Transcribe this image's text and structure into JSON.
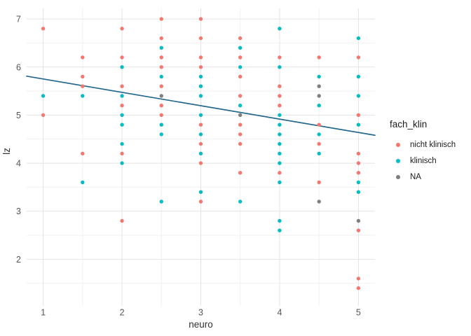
{
  "chart_data": {
    "type": "scatter",
    "title": "",
    "xlabel": "neuro",
    "ylabel": "lz",
    "x_ticks": [
      1,
      2,
      3,
      4,
      5
    ],
    "y_ticks": [
      2,
      3,
      4,
      5,
      6,
      7
    ],
    "xlim": [
      0.79,
      5.21
    ],
    "ylim": [
      1.03,
      7.22
    ],
    "grid": {
      "major_x": [
        1,
        2,
        3,
        4,
        5
      ],
      "minor_x": [
        1.5,
        2.5,
        3.5,
        4.5
      ],
      "major_y": [
        2,
        3,
        4,
        5,
        6,
        7
      ],
      "minor_y": [
        1.5,
        2.5,
        3.5,
        4.5,
        5.5,
        6.5
      ],
      "major_color": "#e4e4e4",
      "minor_color": "#f1f1f1"
    },
    "legend": {
      "title": "fach_klin",
      "position": "right"
    },
    "series": [
      {
        "name": "nicht klinisch",
        "color": "#F8766D",
        "points": [
          [
            1,
            6.8
          ],
          [
            1,
            5.0
          ],
          [
            1.5,
            6.2
          ],
          [
            1.5,
            5.8
          ],
          [
            1.5,
            5.6
          ],
          [
            1.5,
            4.2
          ],
          [
            2,
            6.8
          ],
          [
            2,
            6.2
          ],
          [
            2,
            5.6
          ],
          [
            2,
            5.2
          ],
          [
            2,
            4.2
          ],
          [
            2,
            2.8
          ],
          [
            2.5,
            7.0
          ],
          [
            2.5,
            6.6
          ],
          [
            2.5,
            6.2
          ],
          [
            2.5,
            6.0
          ],
          [
            2.5,
            5.6
          ],
          [
            2.5,
            5.2
          ],
          [
            2.5,
            5.0
          ],
          [
            3,
            7.0
          ],
          [
            3,
            6.6
          ],
          [
            3,
            6.2
          ],
          [
            3,
            6.0
          ],
          [
            3,
            4.8
          ],
          [
            3,
            4.4
          ],
          [
            3,
            4.0
          ],
          [
            3,
            3.2
          ],
          [
            3.5,
            6.6
          ],
          [
            3.5,
            6.2
          ],
          [
            3.5,
            5.8
          ],
          [
            3.5,
            5.4
          ],
          [
            3.5,
            4.8
          ],
          [
            3.5,
            4.6
          ],
          [
            3.5,
            4.4
          ],
          [
            3.5,
            3.8
          ],
          [
            4,
            6.2
          ],
          [
            4,
            5.6
          ],
          [
            4,
            5.4
          ],
          [
            4,
            5.2
          ],
          [
            4,
            3.8
          ],
          [
            4.5,
            6.2
          ],
          [
            4.5,
            4.8
          ],
          [
            4.5,
            4.4
          ],
          [
            4.5,
            3.6
          ],
          [
            5,
            6.2
          ],
          [
            5,
            5.0
          ],
          [
            5,
            4.2
          ],
          [
            5,
            4.0
          ],
          [
            5,
            3.8
          ],
          [
            5,
            2.6
          ],
          [
            5,
            1.6
          ],
          [
            5,
            1.4
          ]
        ]
      },
      {
        "name": "klinisch",
        "color": "#00BFC4",
        "points": [
          [
            1,
            5.4
          ],
          [
            1.5,
            5.4
          ],
          [
            1.5,
            3.6
          ],
          [
            2,
            6.0
          ],
          [
            2,
            5.4
          ],
          [
            2,
            5.0
          ],
          [
            2,
            4.8
          ],
          [
            2,
            4.4
          ],
          [
            2,
            4.0
          ],
          [
            2.5,
            6.4
          ],
          [
            2.5,
            5.8
          ],
          [
            2.5,
            4.8
          ],
          [
            2.5,
            4.6
          ],
          [
            2.5,
            3.2
          ],
          [
            3,
            5.8
          ],
          [
            3,
            5.6
          ],
          [
            3,
            5.4
          ],
          [
            3,
            5.0
          ],
          [
            3,
            4.6
          ],
          [
            3,
            4.2
          ],
          [
            3,
            3.4
          ],
          [
            3.5,
            6.4
          ],
          [
            3.5,
            6.0
          ],
          [
            3.5,
            5.2
          ],
          [
            3.5,
            3.2
          ],
          [
            4,
            6.8
          ],
          [
            4,
            6.0
          ],
          [
            4,
            5.0
          ],
          [
            4,
            4.8
          ],
          [
            4,
            4.6
          ],
          [
            4,
            4.4
          ],
          [
            4,
            4.2
          ],
          [
            4,
            4.0
          ],
          [
            4,
            3.6
          ],
          [
            4,
            2.8
          ],
          [
            4,
            2.6
          ],
          [
            4.5,
            5.8
          ],
          [
            4.5,
            5.2
          ],
          [
            4.5,
            4.6
          ],
          [
            4.5,
            4.2
          ],
          [
            5,
            6.6
          ],
          [
            5,
            5.8
          ],
          [
            5,
            5.4
          ],
          [
            5,
            4.8
          ],
          [
            5,
            3.6
          ],
          [
            5,
            3.4
          ]
        ]
      },
      {
        "name": "NA",
        "color": "#7F7F7F",
        "points": [
          [
            2.5,
            5.4
          ],
          [
            3.5,
            5.0
          ],
          [
            4.5,
            5.6
          ],
          [
            4.5,
            5.4
          ],
          [
            4.5,
            3.2
          ],
          [
            5,
            2.8
          ]
        ]
      }
    ],
    "trend_line": {
      "color": "#24688E",
      "from": [
        0.79,
        5.81
      ],
      "to": [
        5.21,
        4.58
      ]
    }
  }
}
